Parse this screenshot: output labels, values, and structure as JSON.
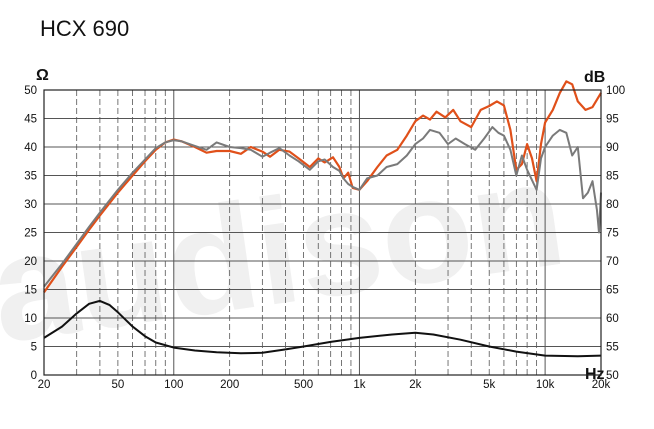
{
  "chart_data": {
    "type": "line",
    "title": "HCX 690",
    "watermark": "audison",
    "x_scale": "log",
    "xlim": [
      20,
      20000
    ],
    "x_ticks": [
      {
        "value": 20,
        "label": "20"
      },
      {
        "value": 50,
        "label": "50"
      },
      {
        "value": 100,
        "label": "100"
      },
      {
        "value": 200,
        "label": "200"
      },
      {
        "value": 500,
        "label": "500"
      },
      {
        "value": 1000,
        "label": "1k"
      },
      {
        "value": 2000,
        "label": "2k"
      },
      {
        "value": 5000,
        "label": "5k"
      },
      {
        "value": 10000,
        "label": "10k"
      },
      {
        "value": 20000,
        "label": "20k"
      }
    ],
    "xlabel": "Hz",
    "y_left": {
      "label": "Ω",
      "range": [
        0,
        50
      ],
      "ticks": [
        0,
        5,
        10,
        15,
        20,
        25,
        30,
        35,
        40,
        45,
        50
      ]
    },
    "y_right": {
      "label": "dB",
      "range": [
        50,
        100
      ],
      "ticks": [
        50,
        55,
        60,
        65,
        70,
        75,
        80,
        85,
        90,
        95,
        100
      ]
    },
    "grid": true,
    "colors": {
      "orange": "#e0501a",
      "gray": "#7a7a7a",
      "black": "#111111",
      "grid": "#555555",
      "watermark": "#f0f0f0"
    },
    "series": [
      {
        "axis": "right",
        "color": "#e0501a",
        "points": [
          [
            20,
            64.5
          ],
          [
            25,
            69
          ],
          [
            30,
            72.5
          ],
          [
            35,
            75.5
          ],
          [
            40,
            78
          ],
          [
            50,
            82
          ],
          [
            60,
            85
          ],
          [
            70,
            87.5
          ],
          [
            80,
            89.5
          ],
          [
            90,
            90.8
          ],
          [
            100,
            91.3
          ],
          [
            110,
            91
          ],
          [
            130,
            90
          ],
          [
            150,
            89
          ],
          [
            170,
            89.3
          ],
          [
            200,
            89.3
          ],
          [
            230,
            88.8
          ],
          [
            260,
            90
          ],
          [
            300,
            89.2
          ],
          [
            330,
            88.3
          ],
          [
            370,
            89.5
          ],
          [
            420,
            89.2
          ],
          [
            470,
            88
          ],
          [
            540,
            86.5
          ],
          [
            600,
            88
          ],
          [
            650,
            87.3
          ],
          [
            720,
            88.2
          ],
          [
            780,
            86.5
          ],
          [
            820,
            84.5
          ],
          [
            870,
            85.5
          ],
          [
            920,
            82.8
          ],
          [
            1000,
            82.5
          ],
          [
            1100,
            84
          ],
          [
            1250,
            86.5
          ],
          [
            1400,
            88.5
          ],
          [
            1600,
            89.5
          ],
          [
            1800,
            92
          ],
          [
            2000,
            94.5
          ],
          [
            2200,
            95.5
          ],
          [
            2400,
            94.8
          ],
          [
            2600,
            96.2
          ],
          [
            2900,
            95.2
          ],
          [
            3200,
            96.5
          ],
          [
            3500,
            94.5
          ],
          [
            4000,
            93.5
          ],
          [
            4500,
            96.5
          ],
          [
            5000,
            97.2
          ],
          [
            5500,
            98
          ],
          [
            6000,
            97.3
          ],
          [
            6500,
            93
          ],
          [
            7000,
            86
          ],
          [
            7500,
            87
          ],
          [
            8000,
            90.5
          ],
          [
            8500,
            88
          ],
          [
            9000,
            84
          ],
          [
            9500,
            90.5
          ],
          [
            10000,
            94.3
          ],
          [
            11000,
            96.5
          ],
          [
            12000,
            99.5
          ],
          [
            13000,
            101.5
          ],
          [
            14000,
            101
          ],
          [
            15000,
            98
          ],
          [
            16500,
            96.5
          ],
          [
            18000,
            97
          ],
          [
            20000,
            99.5
          ]
        ]
      },
      {
        "axis": "right",
        "color": "#7a7a7a",
        "points": [
          [
            20,
            65.5
          ],
          [
            25,
            69.5
          ],
          [
            30,
            73
          ],
          [
            35,
            76
          ],
          [
            40,
            78.5
          ],
          [
            50,
            82.5
          ],
          [
            60,
            85.5
          ],
          [
            70,
            87.8
          ],
          [
            80,
            89.8
          ],
          [
            90,
            90.8
          ],
          [
            100,
            91.2
          ],
          [
            110,
            91
          ],
          [
            130,
            90.2
          ],
          [
            150,
            89.5
          ],
          [
            170,
            90.8
          ],
          [
            200,
            90
          ],
          [
            230,
            89.8
          ],
          [
            260,
            89.5
          ],
          [
            300,
            88.3
          ],
          [
            330,
            89
          ],
          [
            370,
            89.8
          ],
          [
            420,
            88.5
          ],
          [
            470,
            87.5
          ],
          [
            540,
            86
          ],
          [
            600,
            87.5
          ],
          [
            650,
            87.8
          ],
          [
            720,
            86.5
          ],
          [
            780,
            85.8
          ],
          [
            820,
            84.5
          ],
          [
            870,
            83.5
          ],
          [
            920,
            83
          ],
          [
            1000,
            82.5
          ],
          [
            1100,
            84.5
          ],
          [
            1250,
            85
          ],
          [
            1400,
            86.5
          ],
          [
            1600,
            87
          ],
          [
            1800,
            88.5
          ],
          [
            2000,
            90.5
          ],
          [
            2200,
            91.5
          ],
          [
            2400,
            93
          ],
          [
            2700,
            92.5
          ],
          [
            3000,
            90.5
          ],
          [
            3300,
            91.5
          ],
          [
            3700,
            90.5
          ],
          [
            4200,
            89.5
          ],
          [
            4700,
            91.5
          ],
          [
            5200,
            93.5
          ],
          [
            5600,
            92.5
          ],
          [
            6000,
            92
          ],
          [
            6500,
            89.5
          ],
          [
            7000,
            85
          ],
          [
            7500,
            88.5
          ],
          [
            8000,
            86
          ],
          [
            9000,
            82.5
          ],
          [
            9500,
            88
          ],
          [
            10000,
            90
          ],
          [
            11000,
            92
          ],
          [
            12000,
            93
          ],
          [
            13000,
            92.5
          ],
          [
            14000,
            88.5
          ],
          [
            15000,
            90
          ],
          [
            16000,
            81
          ],
          [
            17000,
            82
          ],
          [
            18000,
            84
          ],
          [
            19000,
            79
          ],
          [
            19500,
            75
          ],
          [
            20000,
            82
          ]
        ]
      },
      {
        "axis": "left",
        "color": "#111111",
        "points": [
          [
            20,
            6.5
          ],
          [
            25,
            8.5
          ],
          [
            30,
            10.8
          ],
          [
            35,
            12.5
          ],
          [
            40,
            13
          ],
          [
            45,
            12.3
          ],
          [
            50,
            11
          ],
          [
            60,
            8.5
          ],
          [
            70,
            6.8
          ],
          [
            80,
            5.7
          ],
          [
            100,
            4.8
          ],
          [
            130,
            4.3
          ],
          [
            170,
            4
          ],
          [
            230,
            3.8
          ],
          [
            300,
            3.9
          ],
          [
            400,
            4.5
          ],
          [
            500,
            5
          ],
          [
            700,
            5.8
          ],
          [
            1000,
            6.5
          ],
          [
            1500,
            7.1
          ],
          [
            2000,
            7.4
          ],
          [
            2500,
            7.1
          ],
          [
            3500,
            6.2
          ],
          [
            5000,
            5
          ],
          [
            7000,
            4.1
          ],
          [
            10000,
            3.4
          ],
          [
            15000,
            3.3
          ],
          [
            20000,
            3.4
          ]
        ]
      }
    ]
  }
}
